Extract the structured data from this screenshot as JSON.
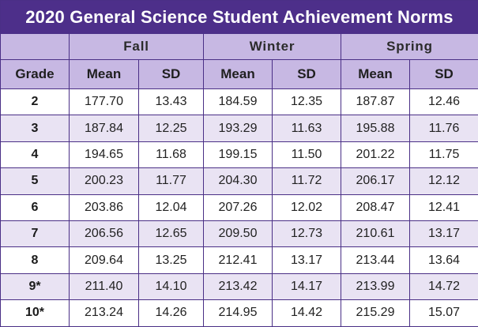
{
  "title": "2020 General Science Student Achievement Norms",
  "seasons": [
    "Fall",
    "Winter",
    "Spring"
  ],
  "grade_header": "Grade",
  "sub_headers": [
    "Mean",
    "SD",
    "Mean",
    "SD",
    "Mean",
    "SD"
  ],
  "rows": [
    {
      "grade": "2",
      "values": [
        "177.70",
        "13.43",
        "184.59",
        "12.35",
        "187.87",
        "12.46"
      ]
    },
    {
      "grade": "3",
      "values": [
        "187.84",
        "12.25",
        "193.29",
        "11.63",
        "195.88",
        "11.76"
      ]
    },
    {
      "grade": "4",
      "values": [
        "194.65",
        "11.68",
        "199.15",
        "11.50",
        "201.22",
        "11.75"
      ]
    },
    {
      "grade": "5",
      "values": [
        "200.23",
        "11.77",
        "204.30",
        "11.72",
        "206.17",
        "12.12"
      ]
    },
    {
      "grade": "6",
      "values": [
        "203.86",
        "12.04",
        "207.26",
        "12.02",
        "208.47",
        "12.41"
      ]
    },
    {
      "grade": "7",
      "values": [
        "206.56",
        "12.65",
        "209.50",
        "12.73",
        "210.61",
        "13.17"
      ]
    },
    {
      "grade": "8",
      "values": [
        "209.64",
        "13.25",
        "212.41",
        "13.17",
        "213.44",
        "13.64"
      ]
    },
    {
      "grade": "9*",
      "values": [
        "211.40",
        "14.10",
        "213.42",
        "14.17",
        "213.99",
        "14.72"
      ]
    },
    {
      "grade": "10*",
      "values": [
        "213.24",
        "14.26",
        "214.95",
        "14.42",
        "215.29",
        "15.07"
      ]
    }
  ],
  "colors": {
    "title_bg": "#4d2f8a",
    "header_bg": "#c7b8e3",
    "row_alt_bg": "#e9e3f3",
    "border": "#4a2f86"
  }
}
